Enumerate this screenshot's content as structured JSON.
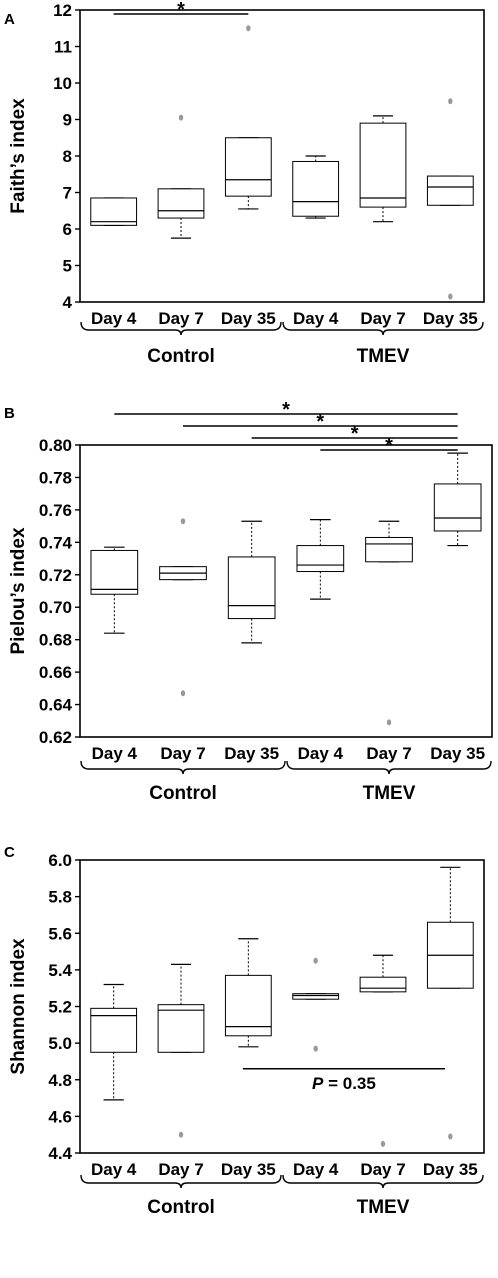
{
  "chart_data": [
    {
      "type": "box",
      "panel": "A",
      "ylabel": "Faith’s index",
      "ylim": [
        4,
        12
      ],
      "yticks": [
        4,
        5,
        6,
        7,
        8,
        9,
        10,
        11,
        12
      ],
      "categories": [
        "Day 4",
        "Day 7",
        "Day 35",
        "Day 4",
        "Day 7",
        "Day 35"
      ],
      "groups": [
        {
          "label": "Control",
          "span": [
            0,
            2
          ]
        },
        {
          "label": "TMEV",
          "span": [
            3,
            5
          ]
        }
      ],
      "boxes": [
        {
          "whisker_low": 6.1,
          "q1": 6.1,
          "median": 6.2,
          "q3": 6.85,
          "whisker_high": 6.85,
          "outliers": []
        },
        {
          "whisker_low": 5.75,
          "q1": 6.3,
          "median": 6.5,
          "q3": 7.1,
          "whisker_high": 7.1,
          "outliers": [
            9.05
          ]
        },
        {
          "whisker_low": 6.55,
          "q1": 6.9,
          "median": 7.35,
          "q3": 8.5,
          "whisker_high": 8.5,
          "outliers": [
            11.5
          ]
        },
        {
          "whisker_low": 6.3,
          "q1": 6.35,
          "median": 6.75,
          "q3": 7.85,
          "whisker_high": 8.0,
          "outliers": []
        },
        {
          "whisker_low": 6.2,
          "q1": 6.6,
          "median": 6.85,
          "q3": 8.9,
          "whisker_high": 9.1,
          "outliers": []
        },
        {
          "whisker_low": 6.65,
          "q1": 6.65,
          "median": 7.15,
          "q3": 7.45,
          "whisker_high": 7.45,
          "outliers": [
            9.5,
            4.15
          ]
        }
      ],
      "significance": [
        {
          "from": 0,
          "to": 2,
          "label": "*"
        }
      ],
      "pvalue_lines": []
    },
    {
      "type": "box",
      "panel": "B",
      "ylabel": "Pielou’s index",
      "ylim": [
        0.62,
        0.8
      ],
      "yticks": [
        "0.62",
        "0.64",
        "0.66",
        "0.68",
        "0.70",
        "0.72",
        "0.74",
        "0.76",
        "0.78",
        "0.80"
      ],
      "categories": [
        "Day 4",
        "Day 7",
        "Day 35",
        "Day 4",
        "Day 7",
        "Day 35"
      ],
      "groups": [
        {
          "label": "Control",
          "span": [
            0,
            2
          ]
        },
        {
          "label": "TMEV",
          "span": [
            3,
            5
          ]
        }
      ],
      "boxes": [
        {
          "whisker_low": 0.684,
          "q1": 0.708,
          "median": 0.711,
          "q3": 0.735,
          "whisker_high": 0.737,
          "outliers": []
        },
        {
          "whisker_low": 0.717,
          "q1": 0.717,
          "median": 0.721,
          "q3": 0.725,
          "whisker_high": 0.725,
          "outliers": [
            0.753,
            0.647
          ]
        },
        {
          "whisker_low": 0.678,
          "q1": 0.693,
          "median": 0.701,
          "q3": 0.731,
          "whisker_high": 0.753,
          "outliers": []
        },
        {
          "whisker_low": 0.705,
          "q1": 0.722,
          "median": 0.726,
          "q3": 0.738,
          "whisker_high": 0.754,
          "outliers": []
        },
        {
          "whisker_low": 0.728,
          "q1": 0.728,
          "median": 0.739,
          "q3": 0.743,
          "whisker_high": 0.753,
          "outliers": [
            0.629
          ]
        },
        {
          "whisker_low": 0.738,
          "q1": 0.747,
          "median": 0.755,
          "q3": 0.776,
          "whisker_high": 0.795,
          "outliers": []
        }
      ],
      "significance": [
        {
          "from": 0,
          "to": 5,
          "label": "*"
        },
        {
          "from": 1,
          "to": 5,
          "label": "*"
        },
        {
          "from": 2,
          "to": 5,
          "label": "*"
        },
        {
          "from": 3,
          "to": 5,
          "label": "*"
        }
      ],
      "pvalue_lines": []
    },
    {
      "type": "box",
      "panel": "C",
      "ylabel": "Shannon index",
      "ylim": [
        4.4,
        6.0
      ],
      "yticks": [
        "4.4",
        "4.6",
        "4.8",
        "5.0",
        "5.2",
        "5.4",
        "5.6",
        "5.8",
        "6.0"
      ],
      "categories": [
        "Day 4",
        "Day 7",
        "Day 35",
        "Day 4",
        "Day 7",
        "Day 35"
      ],
      "groups": [
        {
          "label": "Control",
          "span": [
            0,
            2
          ]
        },
        {
          "label": "TMEV",
          "span": [
            3,
            5
          ]
        }
      ],
      "boxes": [
        {
          "whisker_low": 4.69,
          "q1": 4.95,
          "median": 5.15,
          "q3": 5.19,
          "whisker_high": 5.32,
          "outliers": []
        },
        {
          "whisker_low": 4.95,
          "q1": 4.95,
          "median": 5.18,
          "q3": 5.21,
          "whisker_high": 5.43,
          "outliers": [
            4.5
          ]
        },
        {
          "whisker_low": 4.98,
          "q1": 5.04,
          "median": 5.09,
          "q3": 5.37,
          "whisker_high": 5.57,
          "outliers": []
        },
        {
          "whisker_low": 5.24,
          "q1": 5.24,
          "median": 5.26,
          "q3": 5.27,
          "whisker_high": 5.27,
          "outliers": [
            5.45,
            4.97
          ]
        },
        {
          "whisker_low": 5.28,
          "q1": 5.28,
          "median": 5.3,
          "q3": 5.36,
          "whisker_high": 5.48,
          "outliers": [
            4.45
          ]
        },
        {
          "whisker_low": 5.3,
          "q1": 5.3,
          "median": 5.48,
          "q3": 5.66,
          "whisker_high": 5.96,
          "outliers": [
            4.49
          ]
        }
      ],
      "significance": [],
      "pvalue_lines": [
        {
          "from": 2,
          "to": 5,
          "y": 4.86,
          "p_symbol": "P",
          "p_rest": " = 0.35"
        }
      ]
    }
  ]
}
